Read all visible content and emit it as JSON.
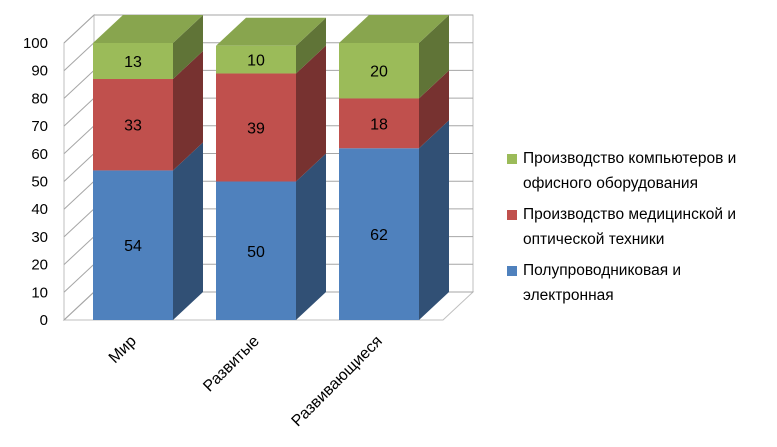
{
  "chart_data": {
    "type": "bar",
    "stacked": true,
    "three_d": true,
    "categories": [
      "Мир",
      "Развитые",
      "Развивающиеся"
    ],
    "series": [
      {
        "name": "Полупроводниковая и электронная",
        "values": [
          54,
          50,
          62
        ],
        "color": "#4f81bd"
      },
      {
        "name": "Производство медицинской и оптической техники",
        "values": [
          33,
          39,
          18
        ],
        "color": "#c0504d"
      },
      {
        "name": "Производство компьютеров и офисного оборудования",
        "values": [
          13,
          10,
          20
        ],
        "color": "#9bbb59"
      }
    ],
    "ylim": [
      0,
      100
    ],
    "yticks": [
      "0",
      "10",
      "20",
      "30",
      "40",
      "50",
      "60",
      "70",
      "80",
      "90",
      "100"
    ],
    "grid": true,
    "legend_position": "right"
  },
  "legend": {
    "items": [
      {
        "line1": "Производство компьютеров и",
        "line2": "офисного оборудования",
        "color": "#9bbb59"
      },
      {
        "line1": "Производство медицинской и",
        "line2": "оптической техники",
        "color": "#c0504d"
      },
      {
        "line1": "Полупроводниковая и",
        "line2": "электронная",
        "color": "#4f81bd"
      }
    ]
  }
}
